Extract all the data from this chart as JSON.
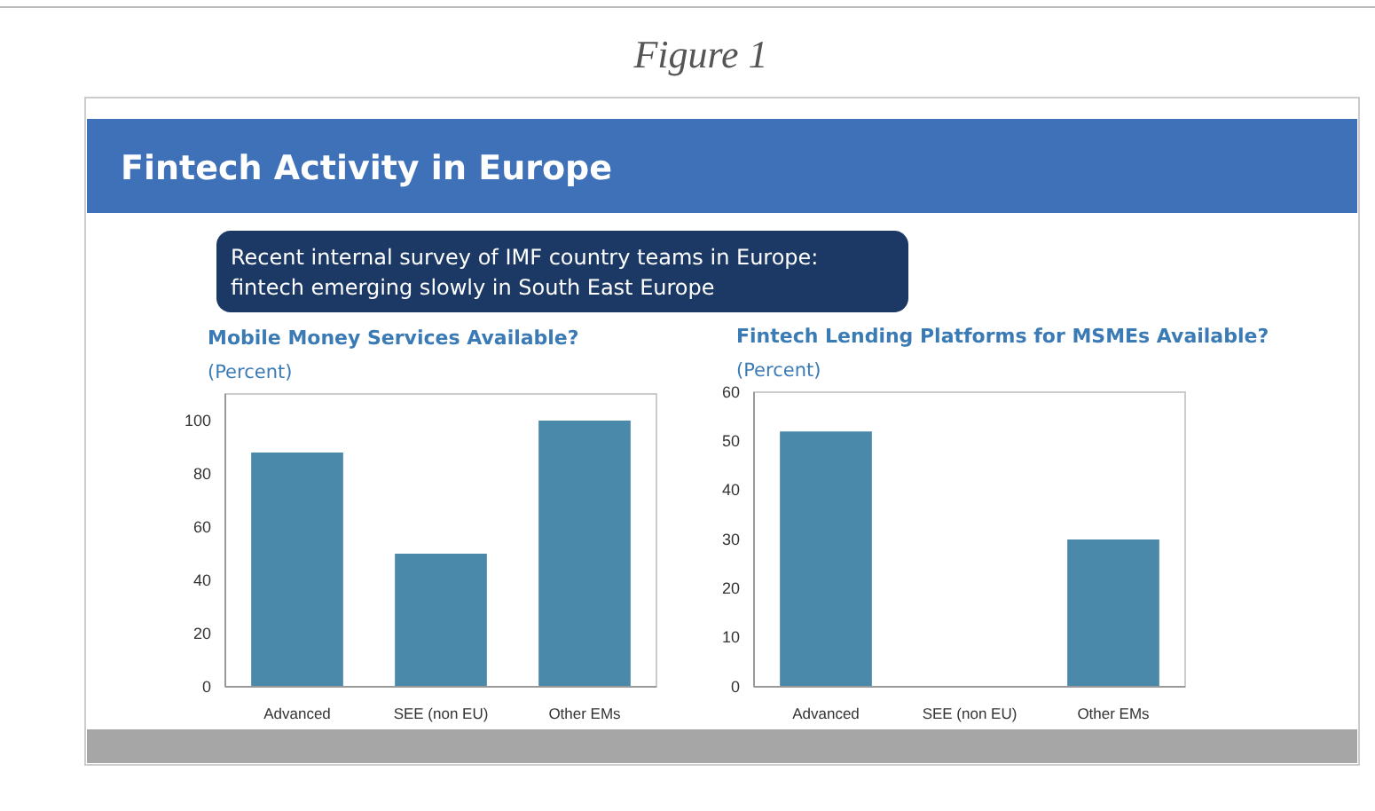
{
  "chart_data": [
    {
      "type": "bar",
      "title": "Mobile Money Services Available?",
      "subtitle": "(Percent)",
      "categories": [
        "Advanced",
        "SEE (non EU)",
        "Other EMs"
      ],
      "values": [
        88,
        50,
        100
      ],
      "color": "#4a89aa",
      "ylim": [
        0,
        110
      ],
      "yticks": [
        0,
        20,
        40,
        60,
        80,
        100
      ],
      "annotations": [
        "Figure 1",
        "Fintech Activity in Europe",
        "Recent internal survey of IMF country teams in Europe:\nfintech emerging slowly in South East Europe"
      ]
    },
    {
      "type": "bar",
      "title": "Fintech Lending Platforms for MSMEs Available?",
      "subtitle": "(Percent)",
      "categories": [
        "Advanced",
        "SEE (non EU)",
        "Other EMs"
      ],
      "values": [
        52,
        0,
        30
      ],
      "color": "#4a89aa",
      "ylim": [
        0,
        60
      ],
      "yticks": [
        0,
        10,
        20,
        30,
        40,
        50,
        60
      ]
    }
  ]
}
